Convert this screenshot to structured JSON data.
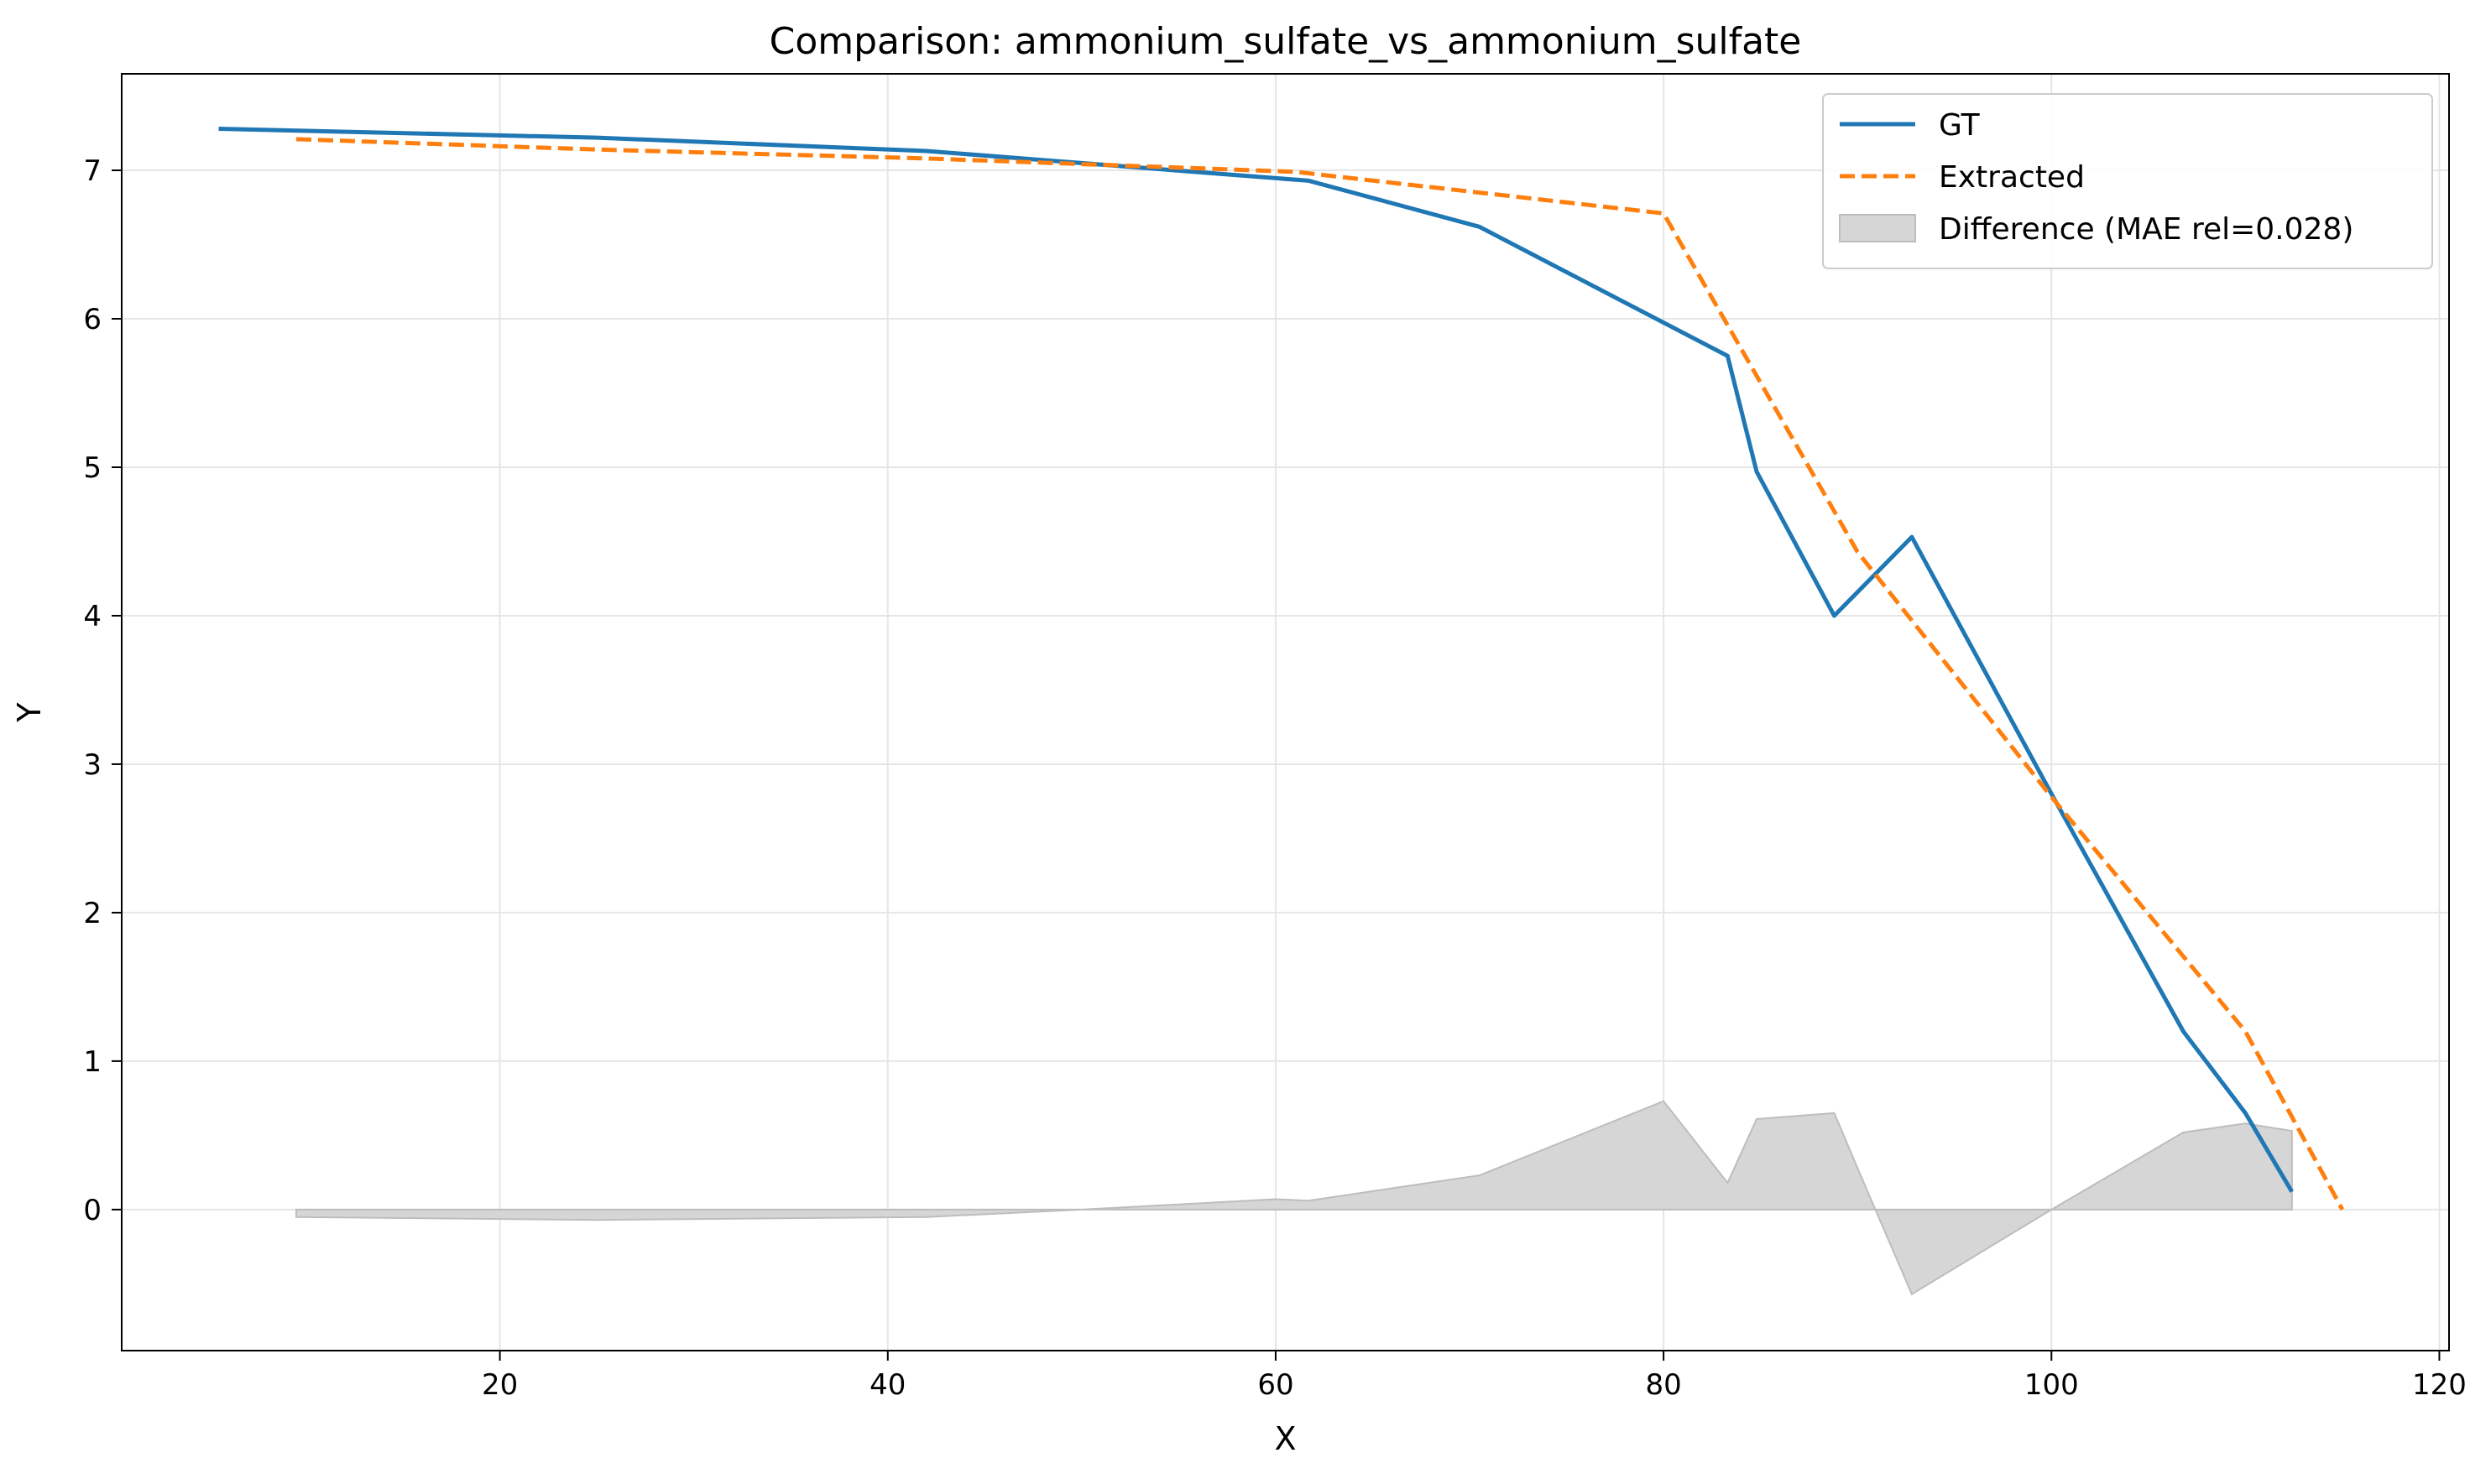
{
  "chart_data": {
    "type": "line",
    "title": "Comparison: ammonium_sulfate_vs_ammonium_sulfate",
    "xlabel": "X",
    "ylabel": "Y",
    "xlim": [
      0.5,
      120.5
    ],
    "ylim": [
      -0.95,
      7.65
    ],
    "xticks": [
      20,
      40,
      60,
      80,
      100,
      120
    ],
    "yticks": [
      0,
      1,
      2,
      3,
      4,
      5,
      6,
      7
    ],
    "grid": true,
    "legend_position": "top-right",
    "series": [
      {
        "name": "GT",
        "style": "solid",
        "color": "#1f77b4",
        "points": [
          [
            5.5,
            7.28
          ],
          [
            25,
            7.22
          ],
          [
            42,
            7.13
          ],
          [
            61.7,
            6.93
          ],
          [
            70.5,
            6.62
          ],
          [
            83.3,
            5.75
          ],
          [
            84.8,
            4.97
          ],
          [
            88.8,
            4.0
          ],
          [
            92.8,
            4.53
          ],
          [
            100,
            2.8
          ],
          [
            106.8,
            1.2
          ],
          [
            110,
            0.65
          ],
          [
            112.4,
            0.12
          ]
        ]
      },
      {
        "name": "Extracted",
        "style": "dashed",
        "color": "#ff7f0e",
        "points": [
          [
            9.5,
            7.21
          ],
          [
            25,
            7.14
          ],
          [
            42,
            7.08
          ],
          [
            61,
            6.99
          ],
          [
            70.5,
            6.85
          ],
          [
            80,
            6.71
          ],
          [
            90,
            4.43
          ],
          [
            100,
            2.78
          ],
          [
            110,
            1.2
          ],
          [
            115,
            0.0
          ]
        ]
      }
    ],
    "fill": {
      "name": "Difference (MAE rel=0.028)",
      "color": "#d6d6d6",
      "edge_color": "#bdbdbd",
      "points": [
        [
          9.5,
          -0.05
        ],
        [
          25,
          -0.07
        ],
        [
          42,
          -0.05
        ],
        [
          50,
          0.0
        ],
        [
          60,
          0.07
        ],
        [
          61.7,
          0.06
        ],
        [
          70.5,
          0.23
        ],
        [
          80,
          0.73
        ],
        [
          83.3,
          0.18
        ],
        [
          84.8,
          0.61
        ],
        [
          88.8,
          0.65
        ],
        [
          90,
          0.28
        ],
        [
          92.8,
          -0.57
        ],
        [
          100,
          0.0
        ],
        [
          106.8,
          0.52
        ],
        [
          110,
          0.58
        ],
        [
          112.4,
          0.53
        ]
      ]
    }
  }
}
